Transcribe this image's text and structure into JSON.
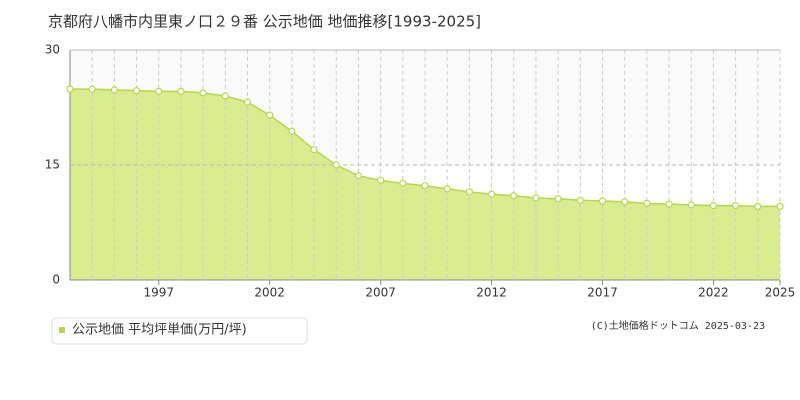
{
  "chart_data": {
    "type": "area",
    "title": "京都府八幡市内里東ノ口２９番 公示地価 地価推移[1993-2025]",
    "x": [
      1993,
      1994,
      1995,
      1996,
      1997,
      1998,
      1999,
      2000,
      2001,
      2002,
      2003,
      2004,
      2005,
      2006,
      2007,
      2008,
      2009,
      2010,
      2011,
      2012,
      2013,
      2014,
      2015,
      2016,
      2017,
      2018,
      2019,
      2020,
      2021,
      2022,
      2023,
      2024,
      2025
    ],
    "series": [
      {
        "name": "公示地価 平均坪単価(万円/坪)",
        "color": "#b5d84a",
        "values": [
          24.9,
          24.9,
          24.8,
          24.7,
          24.6,
          24.6,
          24.4,
          24.0,
          23.2,
          21.5,
          19.4,
          17.0,
          15.0,
          13.6,
          13.0,
          12.6,
          12.3,
          11.9,
          11.5,
          11.2,
          11.0,
          10.7,
          10.6,
          10.4,
          10.3,
          10.2,
          10.0,
          9.9,
          9.8,
          9.7,
          9.7,
          9.6,
          9.6
        ]
      }
    ],
    "xlim": [
      1993,
      2025
    ],
    "xticks": [
      1997,
      2002,
      2007,
      2012,
      2017,
      2022,
      2025
    ],
    "ylim": [
      0,
      30
    ],
    "yticks": [
      0,
      15,
      30
    ],
    "grid": true,
    "credit": "(C)土地価格ドットコム 2025-03-23"
  }
}
